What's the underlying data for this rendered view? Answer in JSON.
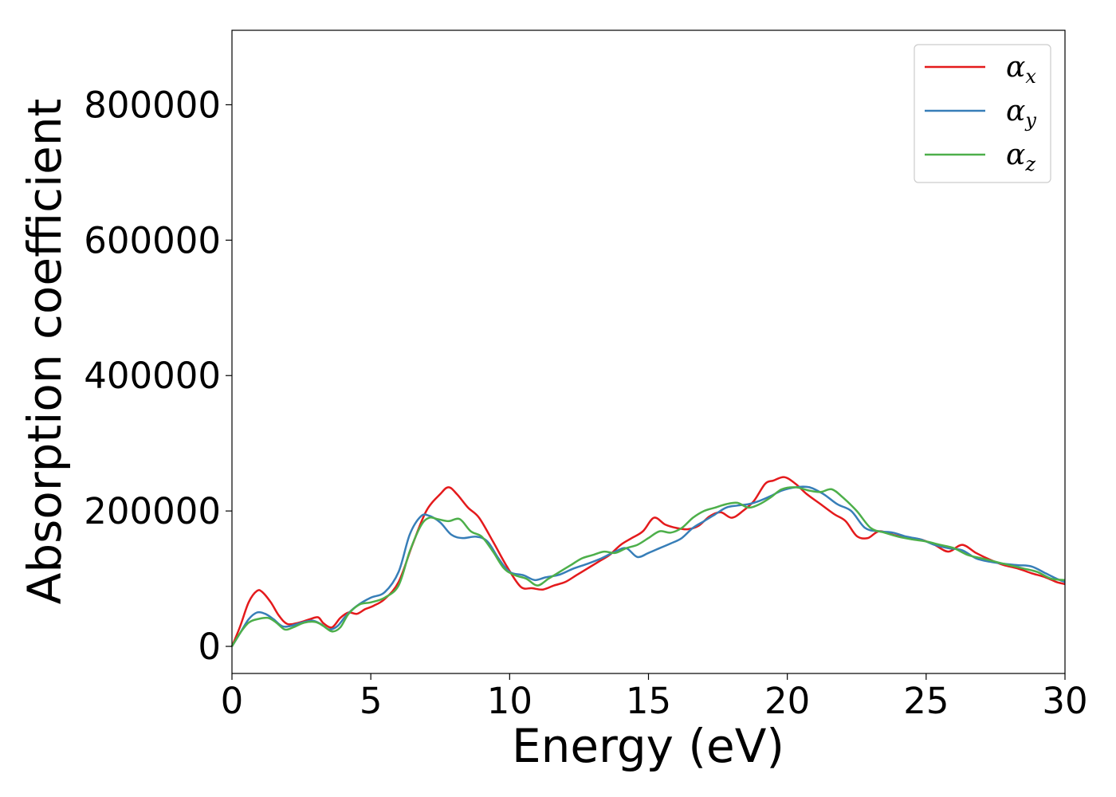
{
  "chart_data": {
    "type": "line",
    "xlabel": "Energy (eV)",
    "ylabel": "Absorption coefficient",
    "xlim": [
      0,
      30
    ],
    "ylim": [
      -40000,
      910000
    ],
    "xticks": [
      0,
      5,
      10,
      15,
      20,
      25,
      30
    ],
    "yticks": [
      0,
      200000,
      400000,
      600000,
      800000
    ],
    "grid": false,
    "legend": "top-right",
    "series": [
      {
        "name": "α_x",
        "label_main": "α",
        "label_sub": "x",
        "color": "#e41a1c",
        "x": [
          0,
          0.3,
          0.6,
          0.9,
          1.1,
          1.4,
          1.7,
          2.0,
          2.4,
          2.8,
          3.1,
          3.3,
          3.6,
          3.9,
          4.2,
          4.5,
          4.8,
          5.1,
          5.5,
          6.0,
          6.5,
          7.0,
          7.5,
          7.8,
          8.1,
          8.5,
          8.9,
          9.4,
          9.9,
          10.4,
          10.8,
          11.2,
          11.6,
          12.0,
          12.4,
          12.8,
          13.2,
          13.6,
          14.0,
          14.4,
          14.8,
          15.2,
          15.6,
          16.0,
          16.4,
          16.8,
          17.2,
          17.6,
          18.0,
          18.4,
          18.8,
          19.2,
          19.5,
          19.9,
          20.3,
          20.7,
          21.2,
          21.7,
          22.1,
          22.5,
          22.9,
          23.3,
          23.8,
          24.3,
          24.8,
          25.3,
          25.8,
          26.3,
          26.8,
          27.3,
          27.8,
          28.3,
          28.8,
          29.3,
          29.7,
          30.0
        ],
        "y": [
          0,
          30000,
          65000,
          82000,
          80000,
          65000,
          45000,
          33000,
          35000,
          40000,
          43000,
          34000,
          28000,
          42000,
          50000,
          48000,
          55000,
          60000,
          70000,
          95000,
          150000,
          200000,
          225000,
          235000,
          225000,
          205000,
          190000,
          155000,
          118000,
          88000,
          86000,
          84000,
          90000,
          95000,
          105000,
          115000,
          125000,
          135000,
          150000,
          160000,
          170000,
          190000,
          180000,
          175000,
          173000,
          178000,
          192000,
          198000,
          190000,
          200000,
          215000,
          240000,
          245000,
          250000,
          240000,
          225000,
          210000,
          195000,
          185000,
          163000,
          160000,
          170000,
          165000,
          160000,
          158000,
          150000,
          140000,
          150000,
          138000,
          128000,
          120000,
          115000,
          108000,
          102000,
          95000,
          92000
        ]
      },
      {
        "name": "α_y",
        "label_main": "α",
        "label_sub": "y",
        "color": "#377eb8",
        "x": [
          0,
          0.3,
          0.6,
          0.9,
          1.2,
          1.5,
          1.8,
          2.1,
          2.5,
          2.9,
          3.2,
          3.5,
          3.8,
          4.1,
          4.5,
          5.0,
          5.5,
          6.0,
          6.4,
          6.8,
          7.1,
          7.5,
          7.9,
          8.3,
          8.8,
          9.2,
          9.6,
          10.0,
          10.5,
          10.9,
          11.3,
          11.8,
          12.3,
          12.8,
          13.3,
          13.8,
          14.2,
          14.6,
          15.0,
          15.4,
          15.8,
          16.2,
          16.6,
          17.0,
          17.4,
          17.8,
          18.2,
          18.6,
          19.0,
          19.4,
          19.8,
          20.3,
          20.8,
          21.3,
          21.8,
          22.3,
          22.8,
          23.3,
          23.8,
          24.3,
          24.8,
          25.3,
          25.8,
          26.3,
          26.8,
          27.3,
          27.8,
          28.3,
          28.8,
          29.3,
          29.7,
          30.0
        ],
        "y": [
          0,
          20000,
          40000,
          50000,
          48000,
          40000,
          30000,
          30000,
          35000,
          38000,
          33000,
          25000,
          30000,
          45000,
          60000,
          72000,
          80000,
          110000,
          165000,
          192000,
          193000,
          183000,
          165000,
          160000,
          162000,
          155000,
          130000,
          110000,
          105000,
          98000,
          102000,
          106000,
          115000,
          122000,
          130000,
          140000,
          145000,
          132000,
          138000,
          145000,
          152000,
          160000,
          175000,
          185000,
          195000,
          205000,
          208000,
          210000,
          215000,
          222000,
          230000,
          235000,
          235000,
          225000,
          210000,
          200000,
          175000,
          170000,
          168000,
          162000,
          158000,
          150000,
          145000,
          142000,
          130000,
          125000,
          122000,
          120000,
          118000,
          108000,
          100000,
          95000
        ]
      },
      {
        "name": "α_z",
        "label_main": "α",
        "label_sub": "z",
        "color": "#4daf4a",
        "x": [
          0,
          0.3,
          0.6,
          0.9,
          1.3,
          1.6,
          1.9,
          2.2,
          2.6,
          3.0,
          3.3,
          3.6,
          3.9,
          4.2,
          4.6,
          5.0,
          5.5,
          6.0,
          6.4,
          6.8,
          7.1,
          7.4,
          7.8,
          8.2,
          8.6,
          9.0,
          9.4,
          9.8,
          10.2,
          10.6,
          11.0,
          11.4,
          11.8,
          12.2,
          12.6,
          13.0,
          13.4,
          13.8,
          14.2,
          14.6,
          15.0,
          15.4,
          15.8,
          16.2,
          16.6,
          17.0,
          17.4,
          17.8,
          18.2,
          18.6,
          19.0,
          19.4,
          19.8,
          20.3,
          20.8,
          21.2,
          21.6,
          22.0,
          22.5,
          23.0,
          23.5,
          24.0,
          24.5,
          25.0,
          25.5,
          26.0,
          26.5,
          27.0,
          27.5,
          28.0,
          28.5,
          29.0,
          29.5,
          30.0
        ],
        "y": [
          0,
          20000,
          35000,
          40000,
          42000,
          35000,
          25000,
          28000,
          35000,
          36000,
          30000,
          22000,
          28000,
          48000,
          62000,
          65000,
          72000,
          90000,
          140000,
          178000,
          190000,
          188000,
          185000,
          188000,
          170000,
          162000,
          140000,
          115000,
          105000,
          100000,
          90000,
          100000,
          110000,
          120000,
          130000,
          135000,
          140000,
          138000,
          145000,
          150000,
          160000,
          170000,
          168000,
          175000,
          190000,
          200000,
          205000,
          210000,
          212000,
          205000,
          210000,
          220000,
          232000,
          235000,
          230000,
          228000,
          232000,
          220000,
          200000,
          175000,
          168000,
          162000,
          158000,
          155000,
          150000,
          145000,
          135000,
          130000,
          125000,
          120000,
          115000,
          110000,
          100000,
          98000
        ]
      }
    ]
  }
}
